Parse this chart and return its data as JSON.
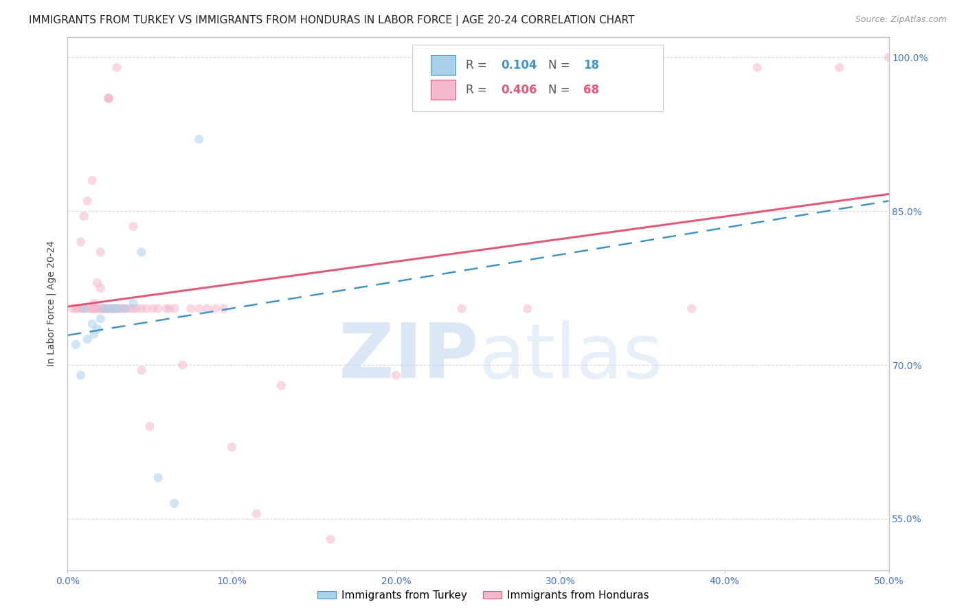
{
  "title": "IMMIGRANTS FROM TURKEY VS IMMIGRANTS FROM HONDURAS IN LABOR FORCE | AGE 20-24 CORRELATION CHART",
  "source_text": "Source: ZipAtlas.com",
  "ylabel_left": "In Labor Force | Age 20-24",
  "xmin": 0.0,
  "xmax": 0.5,
  "ymin": 0.5,
  "ymax": 1.02,
  "turkey_R": 0.104,
  "turkey_N": 18,
  "honduras_R": 0.406,
  "honduras_N": 68,
  "turkey_color": "#a8d0ea",
  "honduras_color": "#f5b8cb",
  "turkey_line_color": "#4393c3",
  "honduras_line_color": "#e05a78",
  "grid_color": "#d8d8e8",
  "watermark_color_ZIP": "#c5d8f0",
  "watermark_color_atlas": "#c5d8f0",
  "background_color": "#ffffff",
  "title_fontsize": 11,
  "axis_label_fontsize": 10,
  "tick_fontsize": 10,
  "marker_size": 90,
  "marker_alpha": 0.55,
  "watermark_fontsize": 80,
  "footer_labels": [
    "Immigrants from Turkey",
    "Immigrants from Honduras"
  ],
  "ytick_values": [
    0.55,
    0.7,
    0.85,
    1.0
  ],
  "ytick_labels": [
    "55.0%",
    "70.0%",
    "85.0%",
    "100.0%"
  ],
  "xtick_values": [
    0.0,
    0.1,
    0.2,
    0.3,
    0.4,
    0.5
  ],
  "xtick_labels": [
    "0.0%",
    "10.0%",
    "20.0%",
    "30.0%",
    "40.0%",
    "50.0%"
  ],
  "turkey_x": [
    0.005,
    0.008,
    0.01,
    0.012,
    0.015,
    0.016,
    0.018,
    0.02,
    0.022,
    0.025,
    0.028,
    0.03,
    0.035,
    0.04,
    0.045,
    0.055,
    0.065,
    0.08
  ],
  "turkey_y": [
    0.72,
    0.69,
    0.755,
    0.725,
    0.74,
    0.73,
    0.735,
    0.745,
    0.755,
    0.755,
    0.755,
    0.755,
    0.755,
    0.76,
    0.81,
    0.59,
    0.565,
    0.92
  ],
  "honduras_x": [
    0.003,
    0.005,
    0.006,
    0.008,
    0.008,
    0.01,
    0.01,
    0.012,
    0.012,
    0.014,
    0.015,
    0.015,
    0.016,
    0.016,
    0.018,
    0.018,
    0.018,
    0.02,
    0.02,
    0.02,
    0.02,
    0.022,
    0.022,
    0.023,
    0.024,
    0.025,
    0.025,
    0.025,
    0.026,
    0.027,
    0.028,
    0.028,
    0.03,
    0.03,
    0.03,
    0.032,
    0.033,
    0.035,
    0.038,
    0.04,
    0.04,
    0.042,
    0.045,
    0.045,
    0.048,
    0.05,
    0.052,
    0.055,
    0.06,
    0.062,
    0.065,
    0.07,
    0.075,
    0.08,
    0.085,
    0.09,
    0.095,
    0.1,
    0.115,
    0.13,
    0.16,
    0.2,
    0.24,
    0.28,
    0.38,
    0.42,
    0.47,
    0.5
  ],
  "honduras_y": [
    0.755,
    0.755,
    0.755,
    0.755,
    0.82,
    0.755,
    0.845,
    0.755,
    0.86,
    0.755,
    0.755,
    0.88,
    0.755,
    0.76,
    0.755,
    0.78,
    0.755,
    0.755,
    0.775,
    0.755,
    0.81,
    0.755,
    0.755,
    0.755,
    0.755,
    0.96,
    0.96,
    0.96,
    0.755,
    0.755,
    0.755,
    0.755,
    0.99,
    0.755,
    0.755,
    0.755,
    0.755,
    0.755,
    0.755,
    0.755,
    0.835,
    0.755,
    0.755,
    0.695,
    0.755,
    0.64,
    0.755,
    0.755,
    0.755,
    0.755,
    0.755,
    0.7,
    0.755,
    0.755,
    0.755,
    0.755,
    0.755,
    0.62,
    0.555,
    0.68,
    0.53,
    0.69,
    0.755,
    0.755,
    0.755,
    0.99,
    0.99,
    1.0
  ]
}
